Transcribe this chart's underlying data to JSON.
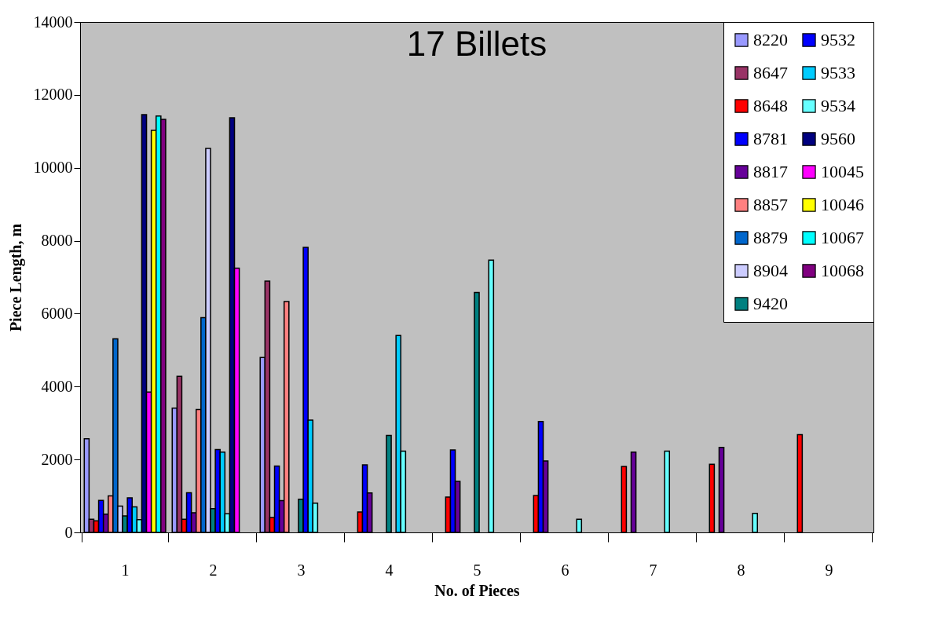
{
  "chart_data": {
    "type": "bar",
    "title": "17 Billets",
    "xlabel": "No. of Pieces",
    "ylabel": "Piece Length, m",
    "categories": [
      "1",
      "2",
      "3",
      "4",
      "5",
      "6",
      "7",
      "8",
      "9"
    ],
    "series": [
      {
        "name": "8220",
        "color": "#9999ff",
        "values": [
          2570,
          3410,
          4800,
          null,
          null,
          null,
          null,
          null,
          null
        ]
      },
      {
        "name": "8647",
        "color": "#993366",
        "values": [
          360,
          4280,
          6890,
          null,
          null,
          null,
          null,
          null,
          null
        ]
      },
      {
        "name": "8648",
        "color": "#ff0000",
        "values": [
          320,
          360,
          410,
          560,
          970,
          1010,
          1810,
          1870,
          2680
        ]
      },
      {
        "name": "8781",
        "color": "#0000ff",
        "values": [
          880,
          1090,
          1820,
          1850,
          2260,
          3040,
          null,
          null,
          null
        ]
      },
      {
        "name": "8817",
        "color": "#660099",
        "values": [
          500,
          540,
          870,
          1080,
          1400,
          1960,
          2200,
          2330,
          null
        ]
      },
      {
        "name": "8857",
        "color": "#ff8080",
        "values": [
          1000,
          3370,
          6330,
          null,
          null,
          null,
          null,
          null,
          null
        ]
      },
      {
        "name": "8879",
        "color": "#0066cc",
        "values": [
          5310,
          5890,
          null,
          null,
          null,
          null,
          null,
          null,
          null
        ]
      },
      {
        "name": "8904",
        "color": "#ccccff",
        "values": [
          720,
          10530,
          null,
          null,
          null,
          null,
          null,
          null,
          null
        ]
      },
      {
        "name": "9420",
        "color": "#008080",
        "values": [
          450,
          650,
          910,
          2660,
          6580,
          null,
          null,
          null,
          null
        ]
      },
      {
        "name": "9532",
        "color": "#0000ff",
        "values": [
          950,
          2270,
          7820,
          null,
          null,
          null,
          null,
          null,
          null
        ]
      },
      {
        "name": "9533",
        "color": "#00ccff",
        "values": [
          700,
          2200,
          3080,
          5400,
          null,
          null,
          null,
          null,
          null
        ]
      },
      {
        "name": "9534",
        "color": "#66ffff",
        "values": [
          350,
          510,
          800,
          2230,
          7470,
          360,
          2230,
          520,
          null
        ]
      },
      {
        "name": "9560",
        "color": "#000080",
        "values": [
          11460,
          11370,
          null,
          null,
          null,
          null,
          null,
          null,
          null
        ]
      },
      {
        "name": "10045",
        "color": "#ff00ff",
        "values": [
          3850,
          7250,
          null,
          null,
          null,
          null,
          null,
          null,
          null
        ]
      },
      {
        "name": "10046",
        "color": "#ffff00",
        "values": [
          11030,
          null,
          null,
          null,
          null,
          null,
          null,
          null,
          null
        ]
      },
      {
        "name": "10067",
        "color": "#00ffff",
        "values": [
          11420,
          null,
          null,
          null,
          null,
          null,
          null,
          null,
          null
        ]
      },
      {
        "name": "10068",
        "color": "#800080",
        "values": [
          11330,
          null,
          null,
          null,
          null,
          null,
          null,
          null,
          null
        ]
      }
    ],
    "ylim": [
      0,
      14000
    ],
    "yticks": [
      0,
      2000,
      4000,
      6000,
      8000,
      10000,
      12000,
      14000
    ],
    "grid": false,
    "legend": "top right"
  }
}
